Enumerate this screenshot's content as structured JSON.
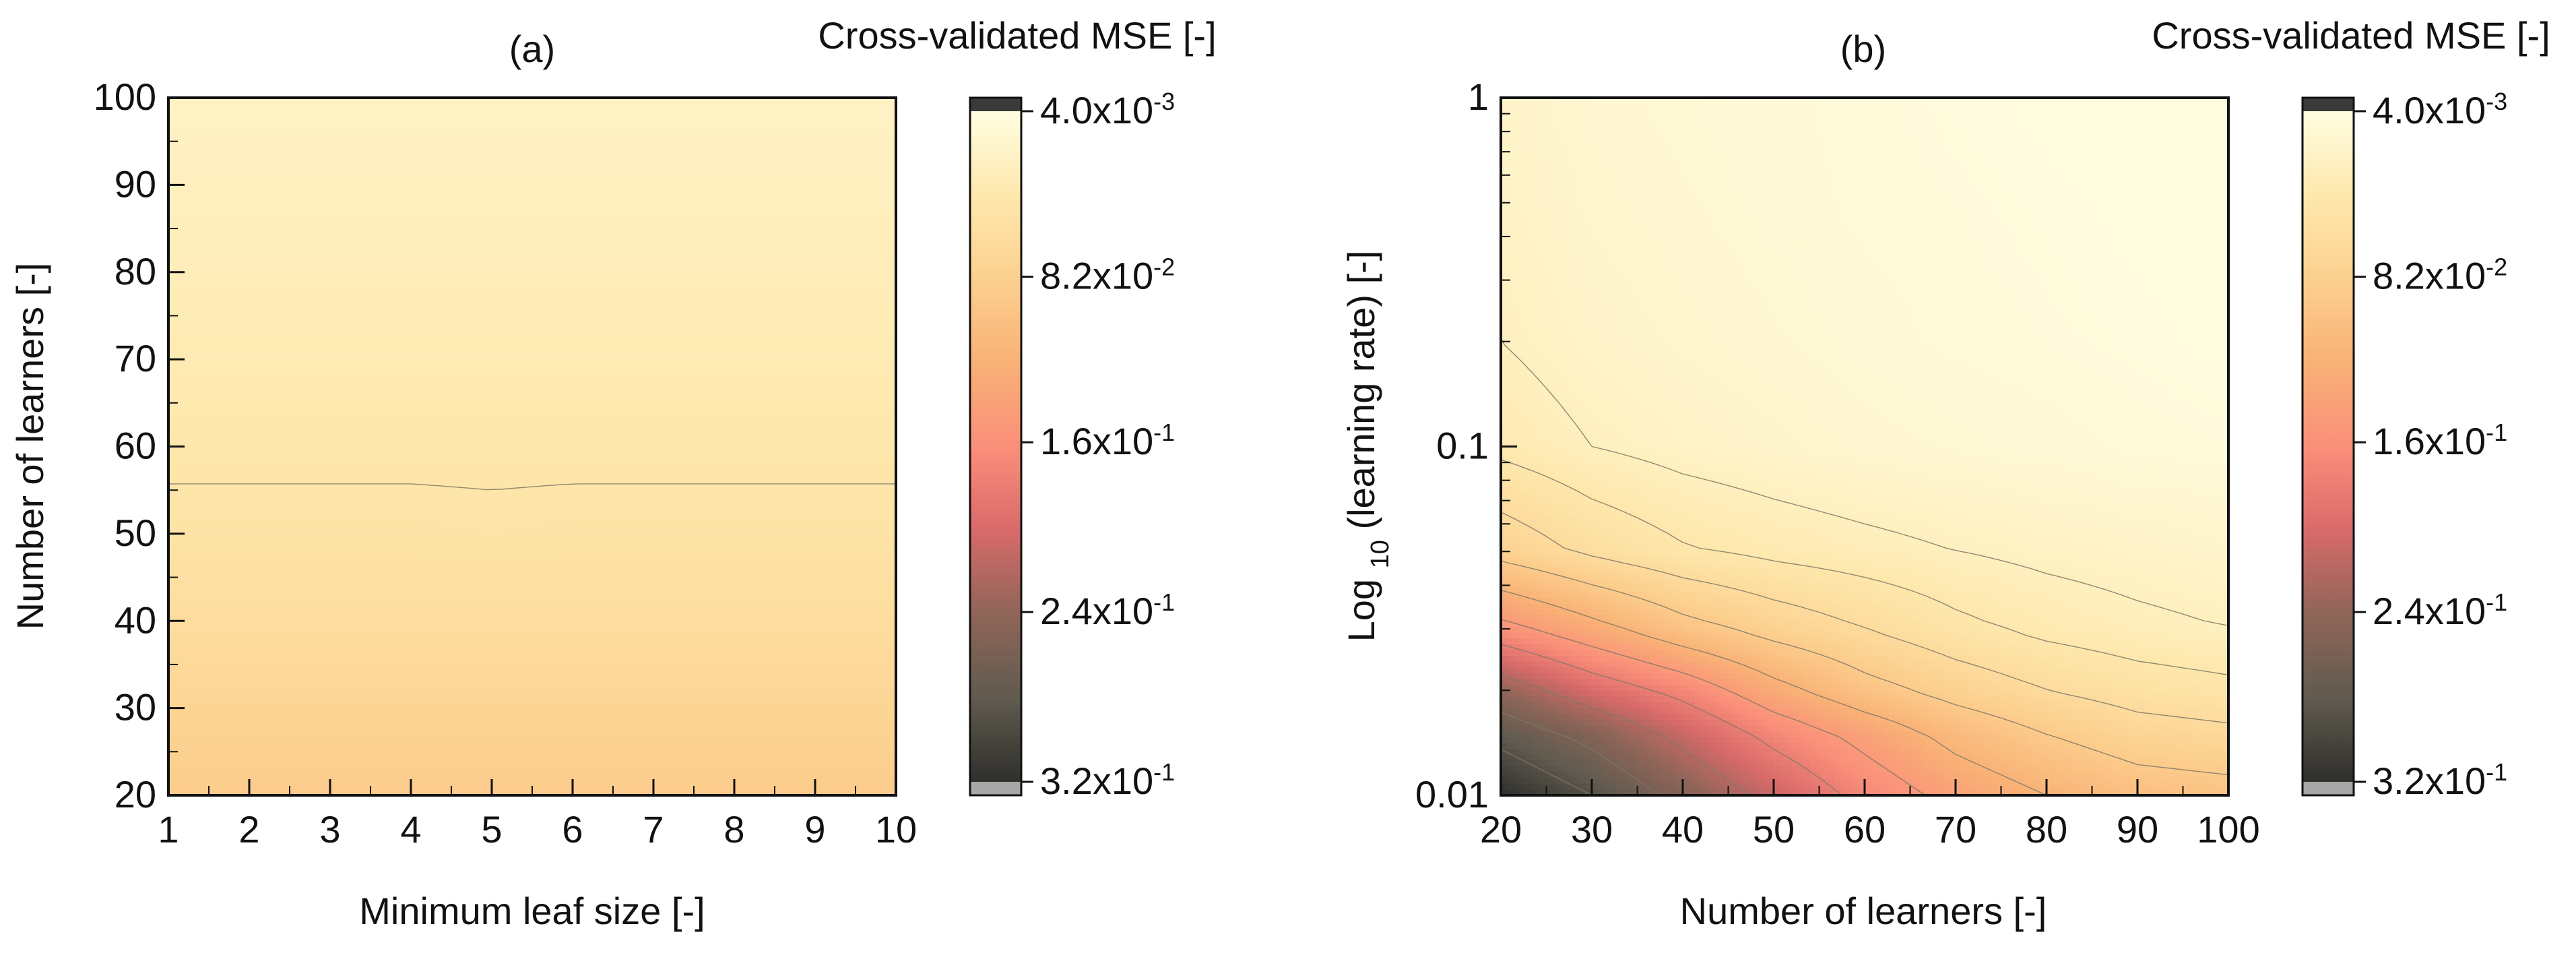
{
  "colors": {
    "colorbar_stops": [
      "#2f2f2b",
      "#615b50",
      "#8f6558",
      "#d86a6a",
      "#fa8f7a",
      "#f9b176",
      "#fcd08f",
      "#fee8ad",
      "#fffde1"
    ],
    "over_color": "#3a3a3a",
    "under_color": "#a7a7a7",
    "contour_line": "#7e7866",
    "axis": "#111111"
  },
  "chart_data": [
    {
      "type": "heatmap",
      "panel_label": "(a)",
      "colorbar_title": "Cross-validated MSE [-]",
      "xlabel": "Minimum leaf size [-]",
      "ylabel": "Number of learners [-]",
      "xlim": [
        1,
        10
      ],
      "ylim": [
        20,
        100
      ],
      "x_ticks": [
        1,
        2,
        3,
        4,
        5,
        6,
        7,
        8,
        9,
        10
      ],
      "x_tick_labels": [
        "1",
        "2",
        "3",
        "4",
        "5",
        "6",
        "7",
        "8",
        "9",
        "10"
      ],
      "y_ticks": [
        20,
        30,
        40,
        50,
        60,
        70,
        80,
        90,
        100
      ],
      "y_tick_labels": [
        "20",
        "30",
        "40",
        "50",
        "60",
        "70",
        "80",
        "90",
        "100"
      ],
      "x_values": [
        1,
        2,
        3,
        4,
        5,
        6,
        7,
        8,
        9,
        10
      ],
      "y_values": [
        20,
        30,
        40,
        50,
        60,
        70,
        80,
        90,
        100
      ],
      "z_values": [
        [
          0.088,
          0.088,
          0.088,
          0.088,
          0.088,
          0.088,
          0.088,
          0.088,
          0.088,
          0.088
        ],
        [
          0.075,
          0.075,
          0.075,
          0.075,
          0.075,
          0.075,
          0.075,
          0.075,
          0.075,
          0.075
        ],
        [
          0.062,
          0.062,
          0.062,
          0.062,
          0.062,
          0.062,
          0.062,
          0.062,
          0.062,
          0.062
        ],
        [
          0.052,
          0.052,
          0.052,
          0.052,
          0.051,
          0.052,
          0.052,
          0.052,
          0.052,
          0.052
        ],
        [
          0.045,
          0.045,
          0.045,
          0.045,
          0.045,
          0.045,
          0.045,
          0.045,
          0.045,
          0.045
        ],
        [
          0.039,
          0.039,
          0.039,
          0.039,
          0.039,
          0.039,
          0.039,
          0.039,
          0.039,
          0.039
        ],
        [
          0.034,
          0.034,
          0.034,
          0.034,
          0.034,
          0.034,
          0.034,
          0.034,
          0.034,
          0.034
        ],
        [
          0.03,
          0.03,
          0.03,
          0.03,
          0.03,
          0.03,
          0.03,
          0.03,
          0.03,
          0.03
        ],
        [
          0.026,
          0.026,
          0.026,
          0.026,
          0.026,
          0.026,
          0.026,
          0.026,
          0.026,
          0.026
        ]
      ],
      "contour_levels": [
        0.048
      ],
      "colorbar_range": [
        0.004,
        0.32
      ],
      "colorbar_ticks": [
        0.004,
        0.082,
        0.16,
        0.24,
        0.32
      ],
      "colorbar_tick_labels": [
        {
          "mantissa": "4.0x10",
          "exponent": "-3"
        },
        {
          "mantissa": "8.2x10",
          "exponent": "-2"
        },
        {
          "mantissa": "1.6x10",
          "exponent": "-1"
        },
        {
          "mantissa": "2.4x10",
          "exponent": "-1"
        },
        {
          "mantissa": "3.2x10",
          "exponent": "-1"
        }
      ]
    },
    {
      "type": "heatmap",
      "panel_label": "(b)",
      "colorbar_title": "Cross-validated MSE [-]",
      "xlabel": "Number of learners [-]",
      "ylabel_parts": [
        "Log",
        "10",
        "(learning rate) [-]"
      ],
      "xlim": [
        20,
        100
      ],
      "ylim": [
        0.01,
        1
      ],
      "y_scale": "log",
      "x_ticks": [
        20,
        30,
        40,
        50,
        60,
        70,
        80,
        90,
        100
      ],
      "x_tick_labels": [
        "20",
        "30",
        "40",
        "50",
        "60",
        "70",
        "80",
        "90",
        "100"
      ],
      "y_ticks": [
        0.01,
        0.1,
        1
      ],
      "y_tick_labels": [
        "0.01",
        "0.1",
        "1"
      ],
      "x_values": [
        20,
        30,
        40,
        50,
        60,
        70,
        80,
        90,
        100
      ],
      "y_values": [
        0.01,
        0.015,
        0.02,
        0.03,
        0.05,
        0.1,
        0.2,
        0.5,
        1
      ],
      "z_values": [
        [
          0.32,
          0.29,
          0.25,
          0.21,
          0.17,
          0.14,
          0.12,
          0.105,
          0.1
        ],
        [
          0.28,
          0.25,
          0.21,
          0.17,
          0.14,
          0.11,
          0.09,
          0.075,
          0.07
        ],
        [
          0.24,
          0.2,
          0.17,
          0.13,
          0.1,
          0.08,
          0.065,
          0.055,
          0.05
        ],
        [
          0.16,
          0.13,
          0.1,
          0.08,
          0.065,
          0.05,
          0.04,
          0.034,
          0.03
        ],
        [
          0.08,
          0.06,
          0.047,
          0.04,
          0.035,
          0.03,
          0.026,
          0.023,
          0.02
        ],
        [
          0.04,
          0.03,
          0.024,
          0.02,
          0.016,
          0.014,
          0.012,
          0.01,
          0.009
        ],
        [
          0.03,
          0.022,
          0.018,
          0.015,
          0.012,
          0.01,
          0.009,
          0.008,
          0.007
        ],
        [
          0.025,
          0.018,
          0.015,
          0.012,
          0.01,
          0.009,
          0.008,
          0.007,
          0.006
        ],
        [
          0.022,
          0.016,
          0.013,
          0.011,
          0.01,
          0.008,
          0.007,
          0.006,
          0.006
        ]
      ],
      "contour_levels": [
        0.03,
        0.045,
        0.065,
        0.09,
        0.12,
        0.15,
        0.18,
        0.22,
        0.26,
        0.29
      ],
      "colorbar_range": [
        0.004,
        0.32
      ],
      "colorbar_ticks": [
        0.004,
        0.082,
        0.16,
        0.24,
        0.32
      ],
      "colorbar_tick_labels": [
        {
          "mantissa": "4.0x10",
          "exponent": "-3"
        },
        {
          "mantissa": "8.2x10",
          "exponent": "-2"
        },
        {
          "mantissa": "1.6x10",
          "exponent": "-1"
        },
        {
          "mantissa": "2.4x10",
          "exponent": "-1"
        },
        {
          "mantissa": "3.2x10",
          "exponent": "-1"
        }
      ]
    }
  ]
}
